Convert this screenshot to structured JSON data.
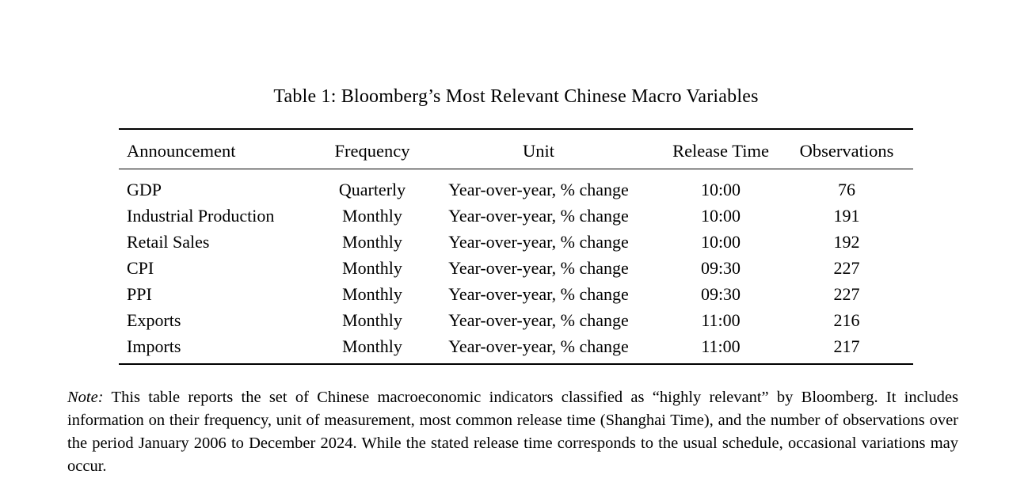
{
  "title": "Table 1: Bloomberg’s Most Relevant Chinese Macro Variables",
  "table": {
    "columns": [
      "Announcement",
      "Frequency",
      "Unit",
      "Release Time",
      "Observations"
    ],
    "rows": [
      [
        "GDP",
        "Quarterly",
        "Year-over-year, % change",
        "10:00",
        "76"
      ],
      [
        "Industrial Production",
        "Monthly",
        "Year-over-year, % change",
        "10:00",
        "191"
      ],
      [
        "Retail Sales",
        "Monthly",
        "Year-over-year, % change",
        "10:00",
        "192"
      ],
      [
        "CPI",
        "Monthly",
        "Year-over-year, % change",
        "09:30",
        "227"
      ],
      [
        "PPI",
        "Monthly",
        "Year-over-year, % change",
        "09:30",
        "227"
      ],
      [
        "Exports",
        "Monthly",
        "Year-over-year, % change",
        "11:00",
        "216"
      ],
      [
        "Imports",
        "Monthly",
        "Year-over-year, % change",
        "11:00",
        "217"
      ]
    ]
  },
  "note": {
    "label": "Note:",
    "text": "This table reports the set of Chinese macroeconomic indicators classified as “highly relevant” by Bloomberg. It includes information on their frequency, unit of measurement, most common release time (Shanghai Time), and the number of observations over the period January 2006 to December 2024. While the stated release time corresponds to the usual schedule, occasional variations may occur."
  },
  "colors": {
    "text": "#000000",
    "background": "#ffffff"
  }
}
